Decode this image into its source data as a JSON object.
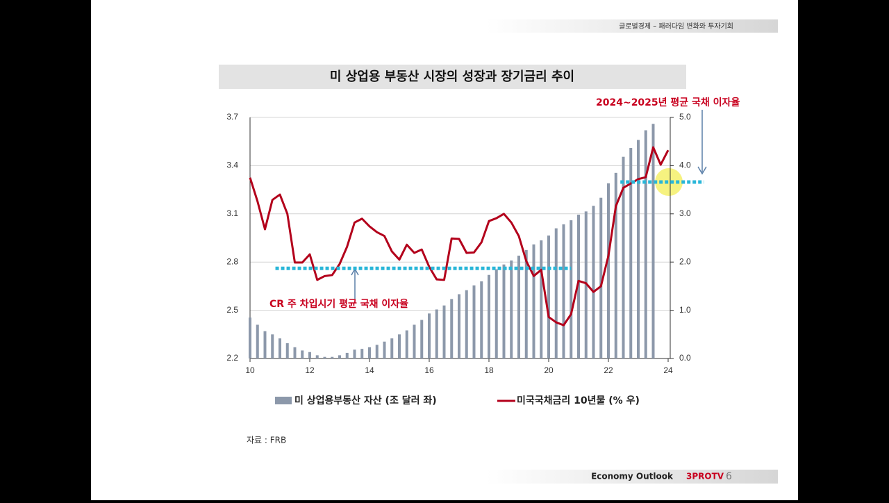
{
  "header": "글로벌경제 – 패러다임 변화와 투자기회",
  "footer": {
    "brand": "Economy Outlook",
    "channel": "3PROTV",
    "page": "6"
  },
  "source": "자료 : FRB",
  "chart_data": {
    "type": "bar-line",
    "title": "미 상업용 부동산 시장의 성장과 장기금리 추이",
    "x": [
      10,
      10.25,
      10.5,
      10.75,
      11,
      11.25,
      11.5,
      11.75,
      12,
      12.25,
      12.5,
      12.75,
      13,
      13.25,
      13.5,
      13.75,
      14,
      14.25,
      14.5,
      14.75,
      15,
      15.25,
      15.5,
      15.75,
      16,
      16.25,
      16.5,
      16.75,
      17,
      17.25,
      17.5,
      17.75,
      18,
      18.25,
      18.5,
      18.75,
      19,
      19.25,
      19.5,
      19.75,
      20,
      20.25,
      20.5,
      20.75,
      21,
      21.25,
      21.5,
      21.75,
      22,
      22.25,
      22.5,
      22.75,
      23,
      23.25,
      23.5,
      23.75,
      24
    ],
    "xlim": [
      10,
      24
    ],
    "xticks": [
      10,
      12,
      14,
      16,
      18,
      20,
      22,
      24
    ],
    "ylim": [
      2.2,
      3.7
    ],
    "yticks": [
      2.2,
      2.5,
      2.8,
      3.1,
      3.4,
      3.7
    ],
    "y2lim": [
      0,
      5
    ],
    "y2ticks": [
      {
        "value": 0,
        "label": "0.0"
      },
      {
        "value": 1,
        "label": "1.0"
      },
      {
        "value": 2,
        "label": "2.0"
      },
      {
        "value": 3,
        "label": "3.0"
      },
      {
        "value": 4,
        "label": "4.0"
      },
      {
        "value": 5,
        "label": "5.0"
      }
    ],
    "grid": true,
    "series": [
      {
        "name": "미 상업용부동산 자산 (조 달러 좌)",
        "type": "bar",
        "color": "#8c98aa",
        "values": [
          2.455,
          2.41,
          2.37,
          2.35,
          2.325,
          2.295,
          2.27,
          2.25,
          2.24,
          2.22,
          2.21,
          2.21,
          2.22,
          2.235,
          2.255,
          2.26,
          2.27,
          2.285,
          2.305,
          2.325,
          2.35,
          2.375,
          2.41,
          2.44,
          2.48,
          2.505,
          2.53,
          2.57,
          2.6,
          2.625,
          2.655,
          2.68,
          2.72,
          2.755,
          2.785,
          2.81,
          2.84,
          2.875,
          2.91,
          2.935,
          2.965,
          3.01,
          3.035,
          3.06,
          3.095,
          3.115,
          3.15,
          3.2,
          3.29,
          3.355,
          3.455,
          3.51,
          3.56,
          3.62,
          3.66,
          null,
          null
        ]
      },
      {
        "name": "미국국채금리 10년물 (% 우)",
        "type": "line",
        "axis": "y2",
        "color": "#b3001b",
        "values": [
          3.75,
          3.26,
          2.68,
          3.29,
          3.4,
          3.0,
          1.99,
          1.99,
          2.16,
          1.63,
          1.71,
          1.73,
          1.96,
          2.32,
          2.82,
          2.9,
          2.74,
          2.62,
          2.54,
          2.22,
          2.05,
          2.36,
          2.19,
          2.26,
          1.9,
          1.64,
          1.63,
          2.49,
          2.48,
          2.19,
          2.2,
          2.41,
          2.85,
          2.91,
          3.0,
          2.82,
          2.54,
          2.02,
          1.71,
          1.84,
          0.86,
          0.75,
          0.69,
          0.92,
          1.61,
          1.56,
          1.38,
          1.5,
          2.13,
          3.16,
          3.54,
          3.63,
          3.72,
          3.76,
          4.38,
          4.02,
          4.32
        ]
      }
    ],
    "annotations": [
      {
        "text": "CR 주 차입시기 평균 국채 이자율",
        "axis": "y2",
        "value": 1.87,
        "x_range": [
          10.85,
          20.75
        ],
        "color": "#29b6d8"
      },
      {
        "text": "2024~2025년 평균 국채 이자율",
        "axis": "y2",
        "value": 3.66,
        "x_range": [
          22.4,
          25.2
        ],
        "color": "#29b6d8"
      }
    ]
  }
}
